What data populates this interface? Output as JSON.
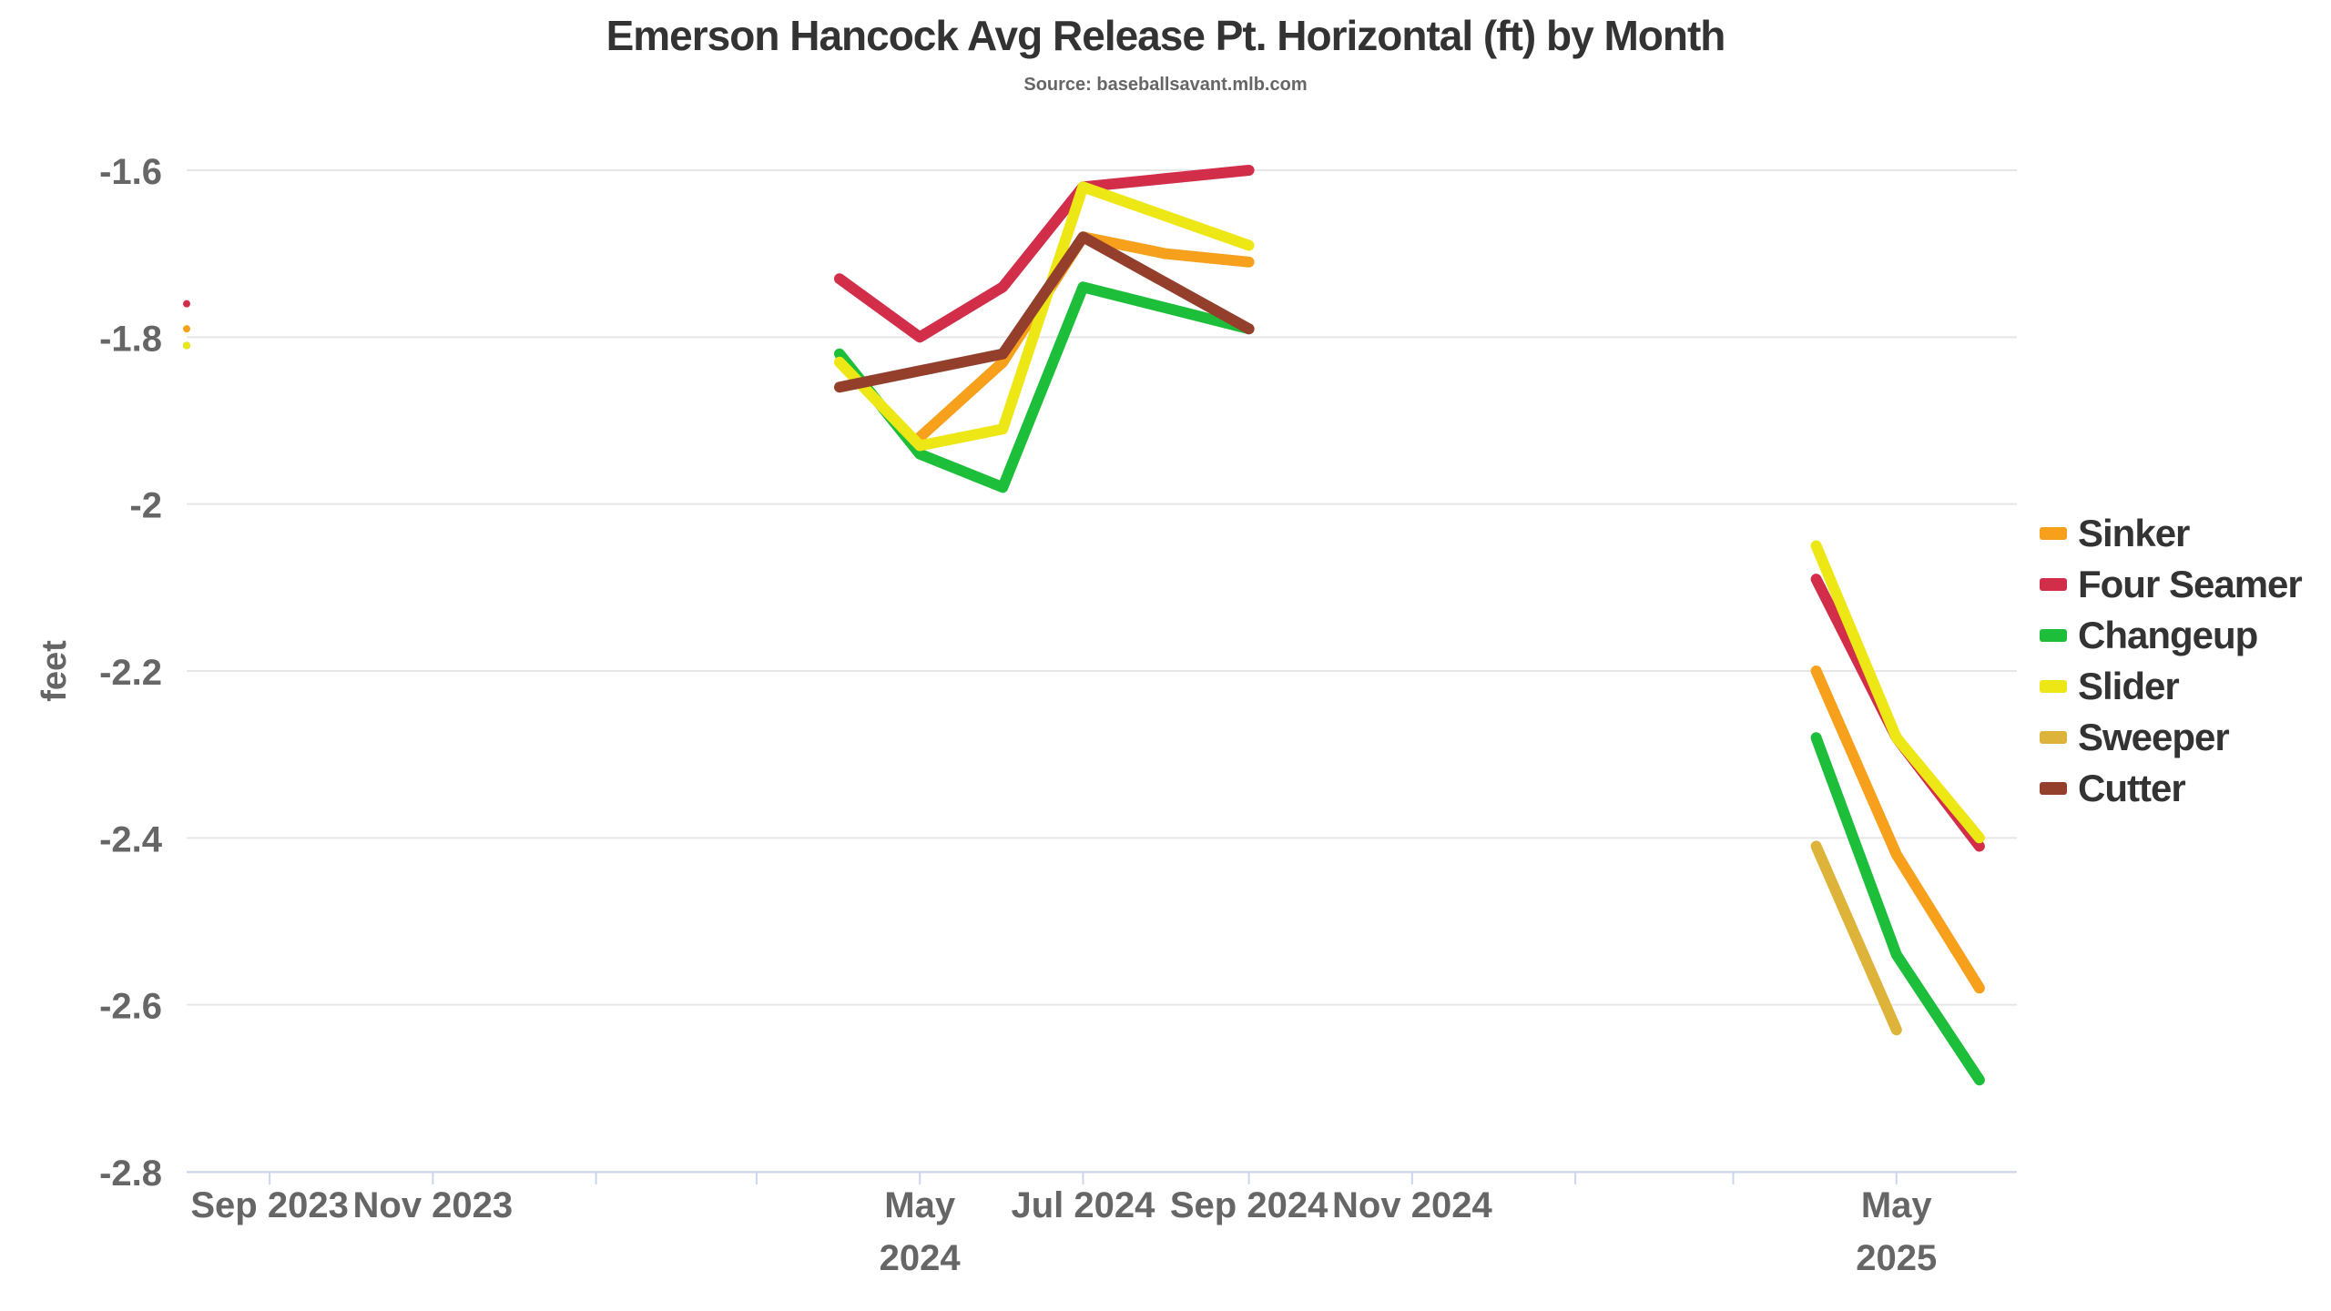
{
  "title": "Emerson Hancock Avg Release Pt. Horizontal (ft) by Month",
  "subtitle": "Source: baseballsavant.mlb.com",
  "chart_data": {
    "type": "line",
    "title": "Emerson Hancock Avg Release Pt. Horizontal (ft) by Month",
    "subtitle": "Source: baseballsavant.mlb.com",
    "xlabel": "",
    "ylabel": "feet",
    "ylim": [
      -2.8,
      -1.6
    ],
    "yticks": [
      "-1.6",
      "-1.8",
      "-2",
      "-2.2",
      "-2.4",
      "-2.6",
      "-2.8"
    ],
    "xlim": [
      "2023-08-01",
      "2025-06-15"
    ],
    "xticks": [
      {
        "date": "2023-09-01",
        "label": [
          "Sep 2023"
        ]
      },
      {
        "date": "2023-11-01",
        "label": [
          "Nov 2023"
        ]
      },
      {
        "date": "2024-05-01",
        "label": [
          "May",
          "2024"
        ]
      },
      {
        "date": "2024-07-01",
        "label": [
          "Jul 2024"
        ]
      },
      {
        "date": "2024-09-01",
        "label": [
          "Sep 2024"
        ]
      },
      {
        "date": "2024-11-01",
        "label": [
          "Nov 2024"
        ]
      },
      {
        "date": "2025-05-01",
        "label": [
          "May",
          "2025"
        ]
      }
    ],
    "minor_ticks": [
      "2024-01-01",
      "2024-03-01",
      "2025-01-01",
      "2025-03-01"
    ],
    "grid": true,
    "legend_position": "right",
    "series": [
      {
        "name": "Sinker",
        "color": "#F7A01C",
        "points": [
          [
            "2023-08-01",
            -1.79
          ],
          [
            "2024-05-01",
            -1.92
          ],
          [
            "2024-06-01",
            -1.83
          ],
          [
            "2024-07-01",
            -1.68
          ],
          [
            "2024-08-01",
            -1.7
          ],
          [
            "2024-09-01",
            -1.71
          ],
          [
            "2025-04-01",
            -2.2
          ],
          [
            "2025-05-01",
            -2.42
          ],
          [
            "2025-06-01",
            -2.58
          ]
        ]
      },
      {
        "name": "Four Seamer",
        "color": "#D22D49",
        "points": [
          [
            "2023-08-01",
            -1.76
          ],
          [
            "2024-04-01",
            -1.73
          ],
          [
            "2024-05-01",
            -1.8
          ],
          [
            "2024-06-01",
            -1.74
          ],
          [
            "2024-07-01",
            -1.62
          ],
          [
            "2024-09-01",
            -1.6
          ],
          [
            "2025-04-01",
            -2.09
          ],
          [
            "2025-05-01",
            -2.28
          ],
          [
            "2025-06-01",
            -2.41
          ]
        ]
      },
      {
        "name": "Changeup",
        "color": "#1DBE3A",
        "points": [
          [
            "2023-08-01",
            -1.81
          ],
          [
            "2024-04-01",
            -1.82
          ],
          [
            "2024-05-01",
            -1.94
          ],
          [
            "2024-06-01",
            -1.98
          ],
          [
            "2024-07-01",
            -1.74
          ],
          [
            "2024-09-01",
            -1.79
          ],
          [
            "2025-04-01",
            -2.28
          ],
          [
            "2025-05-01",
            -2.54
          ],
          [
            "2025-06-01",
            -2.69
          ]
        ]
      },
      {
        "name": "Slider",
        "color": "#EEE716",
        "points": [
          [
            "2023-08-01",
            -1.81
          ],
          [
            "2024-04-01",
            -1.83
          ],
          [
            "2024-05-01",
            -1.93
          ],
          [
            "2024-06-01",
            -1.91
          ],
          [
            "2024-07-01",
            -1.62
          ],
          [
            "2024-09-01",
            -1.69
          ],
          [
            "2025-04-01",
            -2.05
          ],
          [
            "2025-05-01",
            -2.28
          ],
          [
            "2025-06-01",
            -2.4
          ]
        ]
      },
      {
        "name": "Sweeper",
        "color": "#DDB33A",
        "points": [
          [
            "2025-04-01",
            -2.41
          ],
          [
            "2025-05-01",
            -2.63
          ]
        ]
      },
      {
        "name": "Cutter",
        "color": "#933F2C",
        "points": [
          [
            "2024-04-01",
            -1.86
          ],
          [
            "2024-06-01",
            -1.82
          ],
          [
            "2024-07-01",
            -1.68
          ],
          [
            "2024-09-01",
            -1.79
          ]
        ]
      }
    ]
  }
}
